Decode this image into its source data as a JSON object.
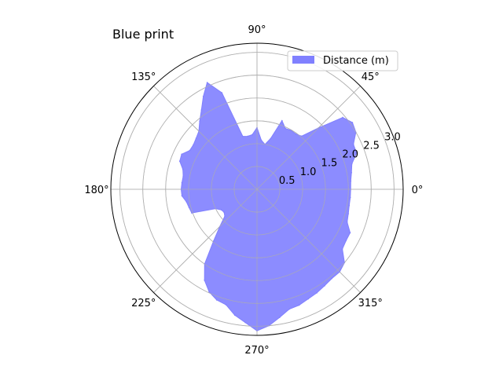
{
  "chart_data": {
    "type": "area",
    "projection": "polar",
    "title": "Blue print",
    "series": [
      {
        "name": "Distance (m)",
        "color": "#8080ff",
        "theta_deg": [
          0,
          5,
          10,
          15,
          20,
          25,
          30,
          35,
          40,
          45,
          50,
          55,
          60,
          65,
          70,
          75,
          80,
          85,
          90,
          95,
          100,
          105,
          110,
          115,
          120,
          125,
          130,
          135,
          140,
          145,
          150,
          155,
          160,
          165,
          170,
          175,
          180,
          185,
          190,
          195,
          200,
          205,
          210,
          215,
          220,
          225,
          230,
          235,
          240,
          245,
          250,
          255,
          260,
          265,
          270,
          275,
          280,
          285,
          290,
          295,
          300,
          305,
          310,
          315,
          320,
          325,
          330,
          335,
          340,
          345,
          350,
          355
        ],
        "r": [
          2.05,
          2.06,
          2.1,
          2.15,
          2.32,
          2.33,
          2.5,
          2.55,
          2.45,
          1.9,
          1.52,
          1.48,
          1.49,
          1.47,
          1.6,
          1.15,
          1.0,
          1.08,
          1.35,
          1.2,
          1.18,
          1.2,
          2.25,
          2.58,
          2.35,
          2.12,
          1.95,
          1.8,
          1.74,
          1.7,
          1.7,
          1.82,
          1.8,
          1.68,
          1.64,
          1.65,
          1.66,
          1.65,
          1.57,
          1.54,
          1.52,
          1.0,
          0.9,
          0.88,
          0.92,
          1.15,
          1.48,
          2.0,
          2.3,
          2.48,
          2.58,
          2.62,
          2.8,
          2.93,
          3.1,
          3.0,
          2.85,
          2.72,
          2.7,
          2.65,
          2.62,
          2.58,
          2.55,
          2.56,
          2.5,
          2.28,
          2.25,
          2.25,
          2.1,
          2.07,
          2.05,
          2.05
        ]
      }
    ],
    "theta_ticks": [
      "0°",
      "45°",
      "90°",
      "135°",
      "180°",
      "225°",
      "270°",
      "315°"
    ],
    "r_ticks": [
      "0.5",
      "1.0",
      "1.5",
      "2.0",
      "2.5",
      "3.0"
    ],
    "rlim": [
      0,
      3.2
    ],
    "grid": true,
    "legend_position": "top-right"
  }
}
